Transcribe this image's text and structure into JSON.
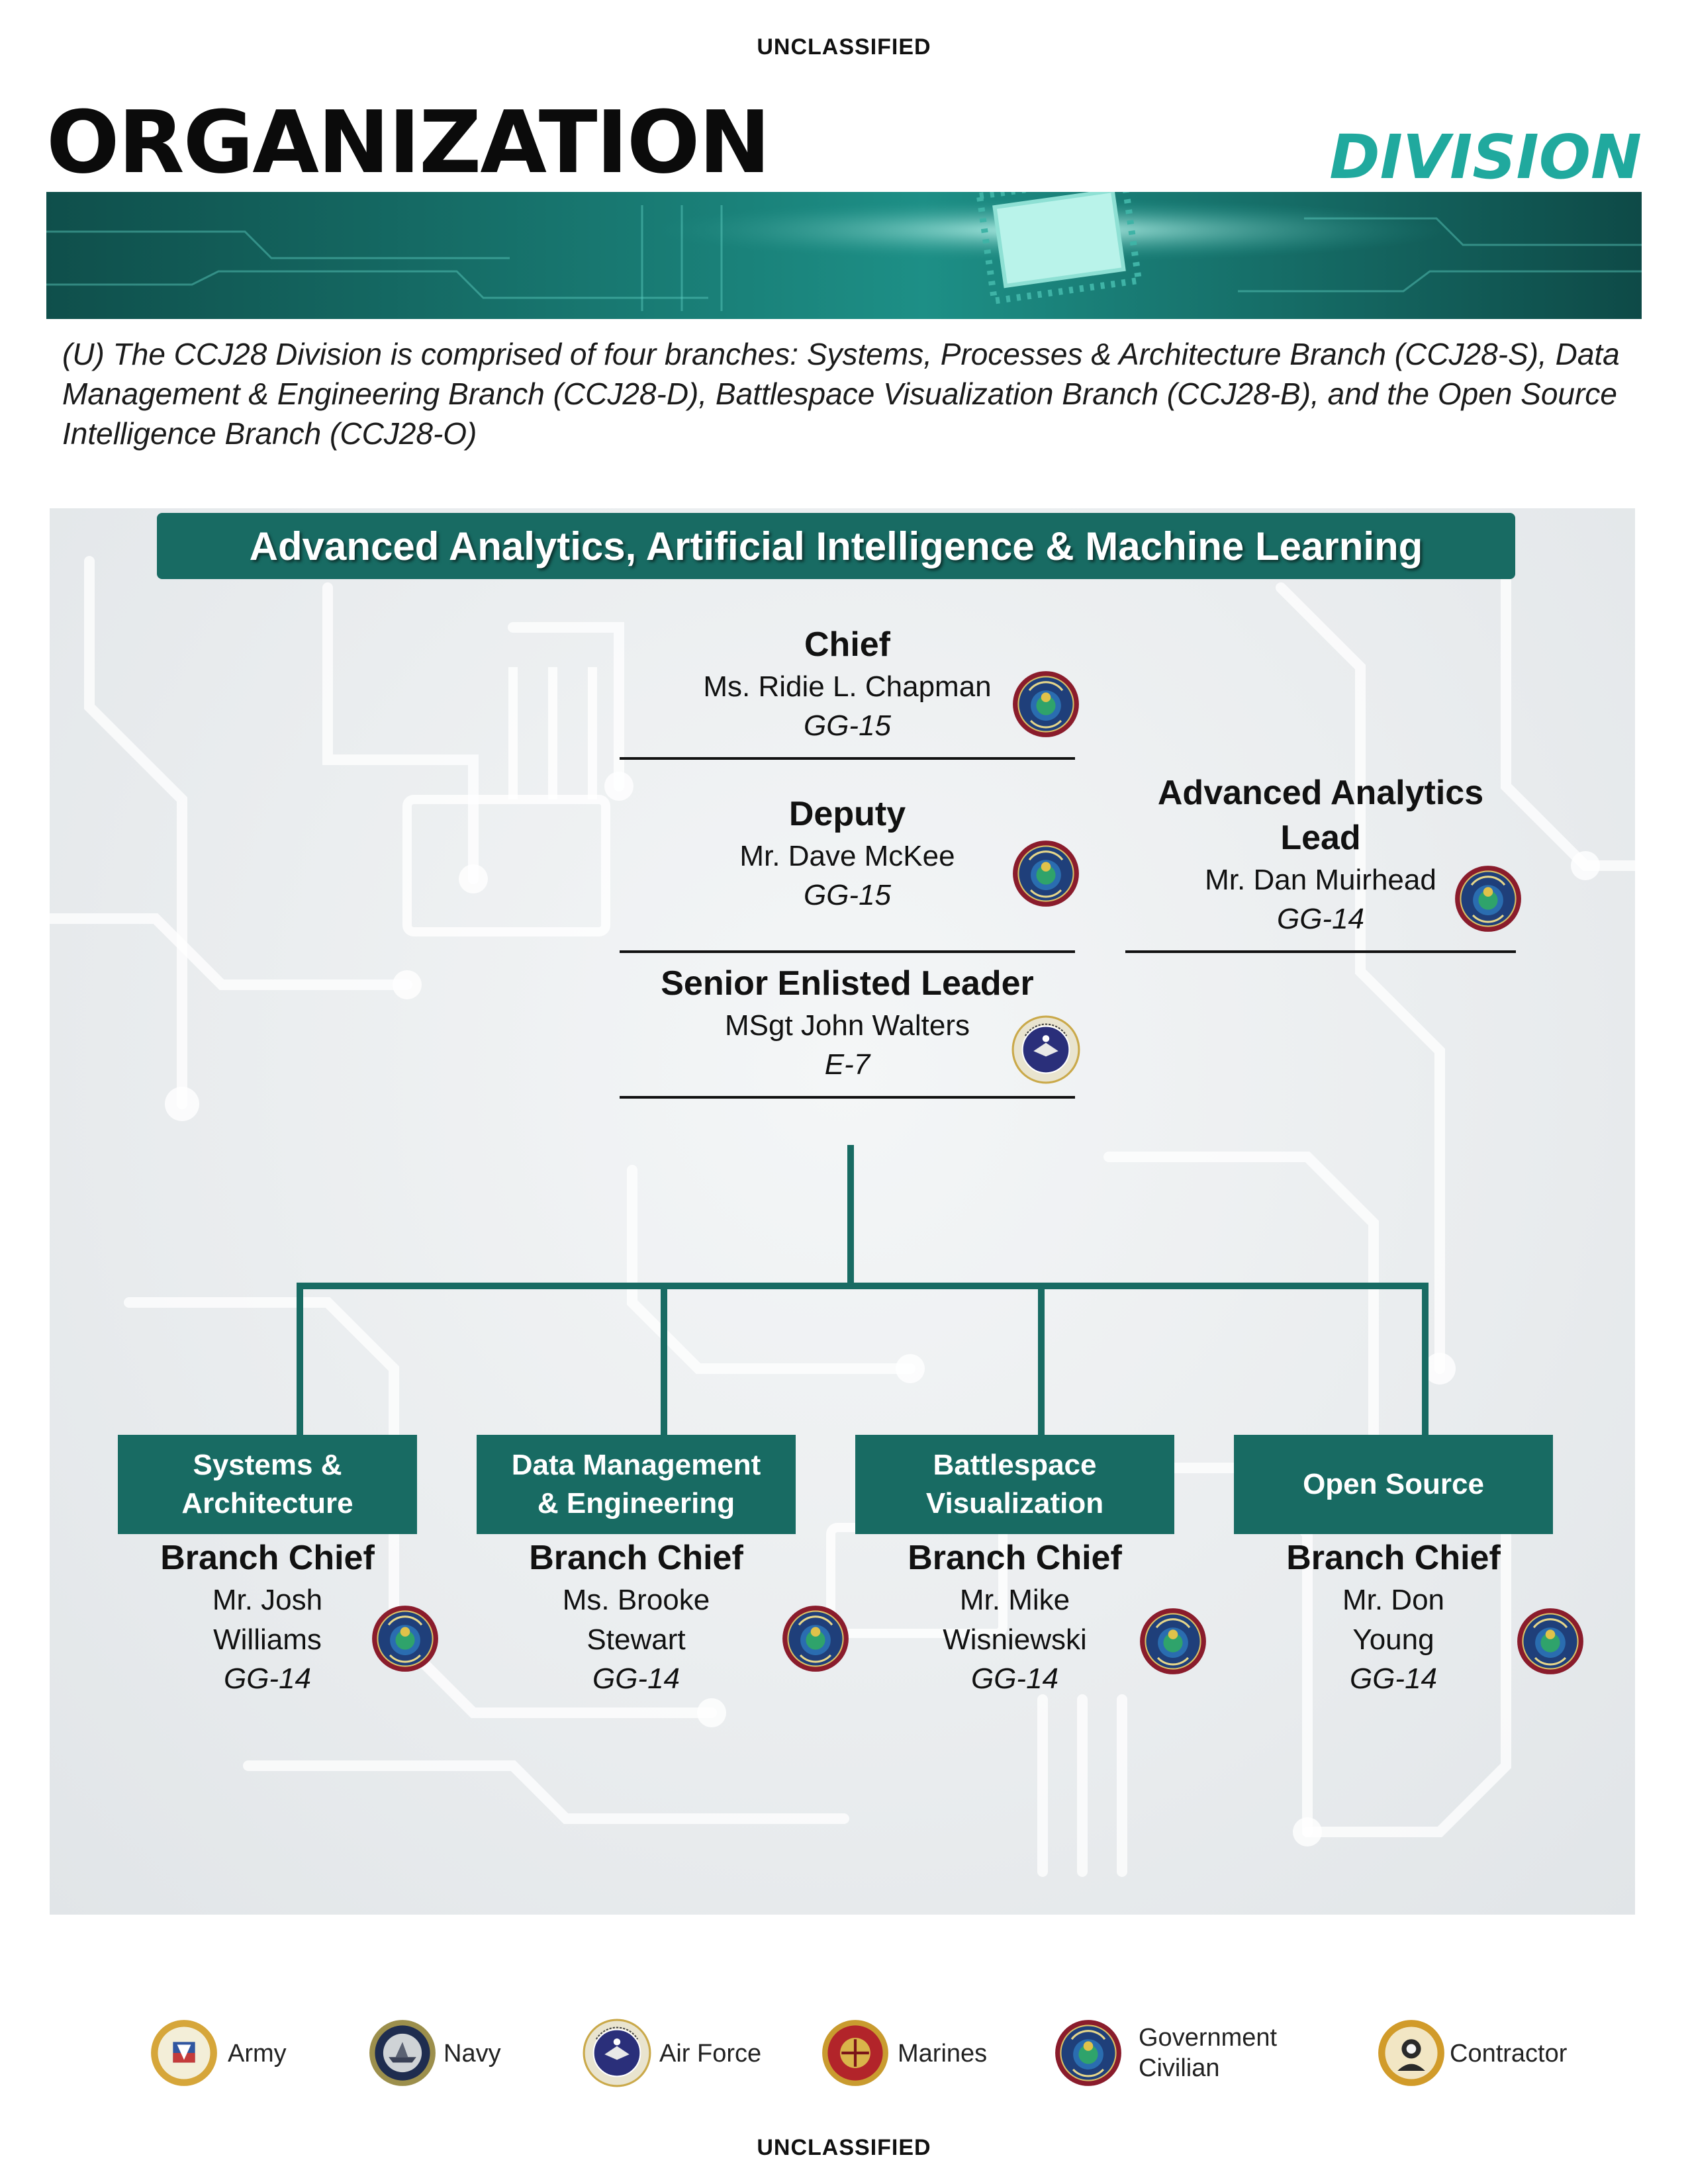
{
  "classification": {
    "top": "UNCLASSIFIED",
    "bottom": "UNCLASSIFIED"
  },
  "header": {
    "title": "ORGANIZATION",
    "subtitle": "DIVISION"
  },
  "intro": "(U) The CCJ28 Division is comprised of four branches: Systems, Processes & Architecture Branch (CCJ28-S), Data Management & Engineering Branch (CCJ28-D), Battlespace Visualization Branch (CCJ28-B), and the Open Source Intelligence Branch (CCJ28-O)",
  "org": {
    "banner": "Advanced Analytics, Artificial Intelligence & Machine Learning",
    "chief": {
      "role": "Chief",
      "name": "Ms. Ridie L. Chapman",
      "grade": "GG-15",
      "seal": "dia-seal-icon"
    },
    "deputy": {
      "role": "Deputy",
      "name": "Mr. Dave McKee",
      "grade": "GG-15",
      "seal": "dia-seal-icon"
    },
    "sel": {
      "role": "Senior Enlisted Leader",
      "name": "MSgt John Walters",
      "grade": "E-7",
      "seal": "air-force-seal-icon"
    },
    "lead": {
      "role_line1": "Advanced Analytics",
      "role_line2": "Lead",
      "name": "Mr. Dan Muirhead",
      "grade": "GG-14",
      "seal": "dia-seal-icon"
    },
    "branches": [
      {
        "box_line1": "Systems &",
        "box_line2": "Architecture",
        "role": "Branch Chief",
        "name_line1": "Mr. Josh",
        "name_line2": "Williams",
        "grade": "GG-14"
      },
      {
        "box_line1": "Data Management",
        "box_line2": "& Engineering",
        "role": "Branch Chief",
        "name_line1": "Ms. Brooke",
        "name_line2": "Stewart",
        "grade": "GG-14"
      },
      {
        "box_line1": "Battlespace",
        "box_line2": "Visualization",
        "role": "Branch Chief",
        "name_line1": "Mr. Mike",
        "name_line2": "Wisniewski",
        "grade": "GG-14"
      },
      {
        "box_line1": "Open Source",
        "box_line2": "",
        "role": "Branch Chief",
        "name_line1": "Mr. Don",
        "name_line2": "Young",
        "grade": "GG-14"
      }
    ]
  },
  "legend": [
    {
      "label": "Army",
      "icon": "army-seal-icon"
    },
    {
      "label": "Navy",
      "icon": "navy-seal-icon"
    },
    {
      "label": "Air Force",
      "icon": "air-force-seal-icon"
    },
    {
      "label": "Marines",
      "icon": "marines-seal-icon"
    },
    {
      "label_line1": "Government",
      "label_line2": "Civilian",
      "icon": "dia-seal-icon"
    },
    {
      "label": "Contractor",
      "icon": "contractor-seal-icon"
    }
  ],
  "colors": {
    "accent": "#20a99e",
    "box": "#186b63",
    "dia_ring": "#8a1c2c",
    "dia_inner": "#1f4f8c"
  }
}
